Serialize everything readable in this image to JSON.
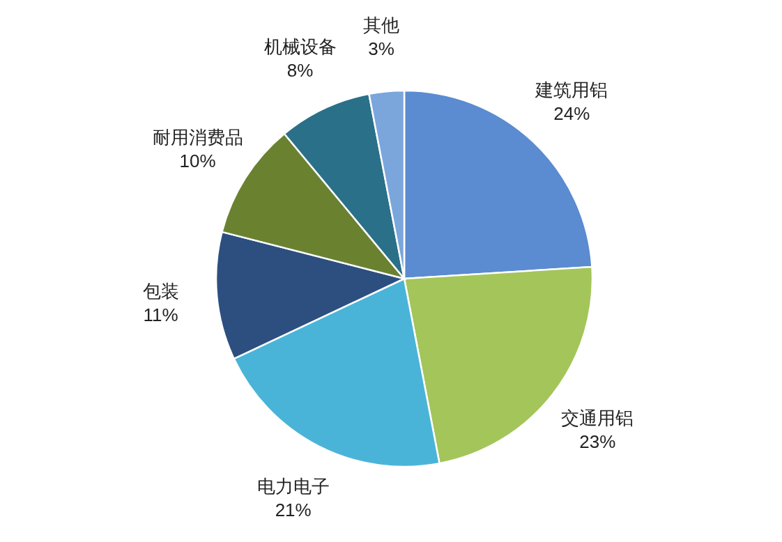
{
  "chart_data": {
    "type": "pie",
    "categories": [
      "建筑用铝",
      "交通用铝",
      "电力电子",
      "包装",
      "耐用消费品",
      "机械设备",
      "其他"
    ],
    "values": [
      24,
      23,
      21,
      11,
      10,
      8,
      3
    ],
    "value_labels": [
      "24%",
      "23%",
      "21%",
      "11%",
      "10%",
      "8%",
      "3%"
    ],
    "colors": [
      "#5b8bd0",
      "#a3c55a",
      "#4ab4d8",
      "#2c4f80",
      "#6a8230",
      "#2a7089",
      "#7aa6dc"
    ]
  }
}
